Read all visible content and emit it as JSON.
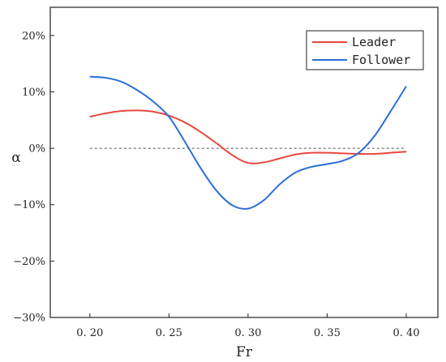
{
  "chart_data": {
    "type": "line",
    "xlabel": "Fr",
    "ylabel": "α",
    "xlim": [
      0.175,
      0.42
    ],
    "ylim": [
      -30,
      25
    ],
    "x_ticks": [
      0.2,
      0.25,
      0.3,
      0.35,
      0.4
    ],
    "x_tick_labels": [
      "0. 20",
      "0. 25",
      "0. 30",
      "0. 35",
      "0. 40"
    ],
    "y_ticks": [
      -30,
      -20,
      -10,
      0,
      10,
      20
    ],
    "y_tick_labels": [
      "−30%",
      "−20%",
      "−10%",
      "0%",
      "10%",
      "20%"
    ],
    "reference_line_y": 0,
    "grid": false,
    "legend_position": "top-right",
    "series": [
      {
        "name": "Leader",
        "color": "#e8473f",
        "x": [
          0.2,
          0.21,
          0.22,
          0.23,
          0.24,
          0.25,
          0.26,
          0.27,
          0.28,
          0.29,
          0.3,
          0.31,
          0.32,
          0.33,
          0.34,
          0.35,
          0.36,
          0.37,
          0.38,
          0.39,
          0.4
        ],
        "y": [
          5.6,
          6.2,
          6.6,
          6.7,
          6.5,
          5.8,
          4.6,
          2.9,
          0.9,
          -1.2,
          -2.6,
          -2.5,
          -1.8,
          -1.1,
          -0.8,
          -0.8,
          -0.9,
          -1.0,
          -1.0,
          -0.8,
          -0.6
        ]
      },
      {
        "name": "Follower",
        "color": "#2b6fd6",
        "x": [
          0.2,
          0.21,
          0.22,
          0.23,
          0.24,
          0.25,
          0.26,
          0.27,
          0.28,
          0.29,
          0.3,
          0.31,
          0.32,
          0.33,
          0.34,
          0.35,
          0.36,
          0.37,
          0.38,
          0.39,
          0.4
        ],
        "y": [
          12.7,
          12.5,
          11.8,
          10.3,
          8.3,
          5.6,
          1.2,
          -3.5,
          -7.5,
          -10.1,
          -10.7,
          -9.2,
          -6.4,
          -4.3,
          -3.3,
          -2.8,
          -2.2,
          -0.8,
          2.2,
          6.5,
          11.0
        ]
      }
    ]
  }
}
